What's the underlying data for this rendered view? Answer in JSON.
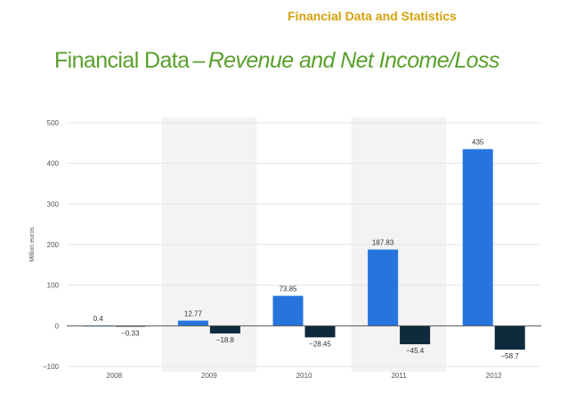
{
  "header": {
    "section_label": "Financial Data and Statistics",
    "title_main": "Financial Data",
    "title_separator": "–",
    "title_emphasis": "Revenue and Net Income/Loss"
  },
  "colors": {
    "heading": "#d4a20a",
    "title": "#5aa02c",
    "revenue_bar": "#2675de",
    "net_income_bar": "#0f2a3d",
    "band": "#f3f3f3",
    "gridline": "#e4e4e4",
    "zero_line": "#555555"
  },
  "chart_data": {
    "type": "bar",
    "categories": [
      "2008",
      "2009",
      "2010",
      "2011",
      "2012"
    ],
    "series": [
      {
        "values": [
          0.4,
          12.77,
          73.85,
          187.83,
          435
        ]
      },
      {
        "values": [
          -0.33,
          -18.8,
          -28.45,
          -45.4,
          -58.7
        ]
      }
    ],
    "data_labels": [
      [
        "0.4",
        "12.77",
        "73.85",
        "187.83",
        "435"
      ],
      [
        "−0.33",
        "−18.8",
        "−28.45",
        "−45.4",
        "−58.7"
      ]
    ],
    "y_ticks": [
      500,
      400,
      300,
      200,
      100,
      0,
      -100
    ],
    "y_tick_labels": [
      "500",
      "400",
      "300",
      "200",
      "100",
      "0",
      "−100"
    ],
    "ylabel": "Million euros",
    "xlabel": "",
    "ylim": [
      -100,
      500
    ],
    "grid": true,
    "alternating_bands": true,
    "legend": "none"
  }
}
